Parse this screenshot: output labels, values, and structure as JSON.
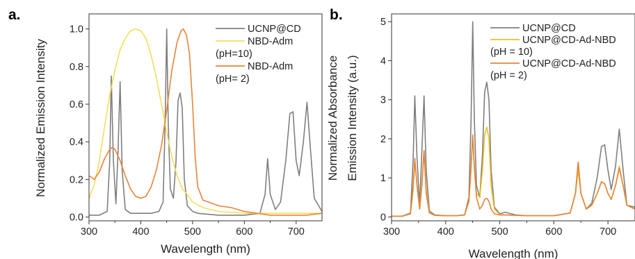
{
  "chart_data": [
    {
      "panel": "a.",
      "type": "line",
      "xlabel": "Wavelength (nm)",
      "ylabel": "Normalized Emission Intensity",
      "xlim": [
        300,
        750
      ],
      "ylim": [
        -0.02,
        1.08
      ],
      "xticks": [
        300,
        400,
        500,
        600,
        700
      ],
      "yticks": [
        0.0,
        0.2,
        0.4,
        0.6,
        0.8,
        1.0
      ],
      "ytick_labels": [
        "0.0",
        "0.2",
        "0.4",
        "0.6",
        "0.8",
        "1.0"
      ],
      "legend_position": "top-right",
      "series": [
        {
          "name": "UCNP@CD",
          "legend_lines": [
            "UCNP@CD"
          ],
          "color": "#7f7f7f",
          "points": [
            [
              300,
              0.01
            ],
            [
              320,
              0.01
            ],
            [
              335,
              0.03
            ],
            [
              340,
              0.3
            ],
            [
              343,
              0.75
            ],
            [
              347,
              0.3
            ],
            [
              352,
              0.07
            ],
            [
              356,
              0.35
            ],
            [
              360,
              0.72
            ],
            [
              364,
              0.25
            ],
            [
              370,
              0.04
            ],
            [
              380,
              0.02
            ],
            [
              400,
              0.02
            ],
            [
              420,
              0.02
            ],
            [
              435,
              0.03
            ],
            [
              443,
              0.08
            ],
            [
              447,
              0.5
            ],
            [
              450,
              1.0
            ],
            [
              453,
              0.5
            ],
            [
              457,
              0.15
            ],
            [
              463,
              0.1
            ],
            [
              468,
              0.3
            ],
            [
              472,
              0.62
            ],
            [
              476,
              0.66
            ],
            [
              480,
              0.58
            ],
            [
              484,
              0.2
            ],
            [
              490,
              0.06
            ],
            [
              500,
              0.03
            ],
            [
              510,
              0.02
            ],
            [
              550,
              0.01
            ],
            [
              600,
              0.01
            ],
            [
              630,
              0.02
            ],
            [
              640,
              0.12
            ],
            [
              645,
              0.31
            ],
            [
              650,
              0.12
            ],
            [
              660,
              0.04
            ],
            [
              670,
              0.08
            ],
            [
              680,
              0.3
            ],
            [
              688,
              0.55
            ],
            [
              694,
              0.56
            ],
            [
              700,
              0.3
            ],
            [
              706,
              0.22
            ],
            [
              714,
              0.4
            ],
            [
              721,
              0.61
            ],
            [
              728,
              0.35
            ],
            [
              735,
              0.1
            ],
            [
              750,
              0.03
            ]
          ]
        },
        {
          "name": "NBD-Adm (pH=10)",
          "legend_lines": [
            "NBD-Adm",
            "(pH=10)"
          ],
          "color": "#f2df5b",
          "points": [
            [
              300,
              0.1
            ],
            [
              310,
              0.17
            ],
            [
              320,
              0.3
            ],
            [
              330,
              0.48
            ],
            [
              340,
              0.65
            ],
            [
              350,
              0.78
            ],
            [
              360,
              0.89
            ],
            [
              370,
              0.95
            ],
            [
              380,
              0.99
            ],
            [
              390,
              1.0
            ],
            [
              400,
              0.99
            ],
            [
              410,
              0.95
            ],
            [
              420,
              0.86
            ],
            [
              430,
              0.74
            ],
            [
              440,
              0.6
            ],
            [
              450,
              0.45
            ],
            [
              460,
              0.32
            ],
            [
              470,
              0.22
            ],
            [
              480,
              0.15
            ],
            [
              490,
              0.12
            ],
            [
              500,
              0.08
            ],
            [
              520,
              0.05
            ],
            [
              550,
              0.03
            ],
            [
              600,
              0.02
            ],
            [
              650,
              0.02
            ],
            [
              700,
              0.02
            ],
            [
              750,
              0.02
            ]
          ]
        },
        {
          "name": "NBD-Adm (pH= 2)",
          "legend_lines": [
            "NBD-Adm",
            "(pH= 2)"
          ],
          "color": "#e8833a",
          "points": [
            [
              300,
              0.22
            ],
            [
              310,
              0.2
            ],
            [
              320,
              0.24
            ],
            [
              330,
              0.31
            ],
            [
              340,
              0.36
            ],
            [
              345,
              0.37
            ],
            [
              350,
              0.36
            ],
            [
              360,
              0.3
            ],
            [
              370,
              0.22
            ],
            [
              380,
              0.15
            ],
            [
              390,
              0.11
            ],
            [
              400,
              0.1
            ],
            [
              410,
              0.11
            ],
            [
              420,
              0.16
            ],
            [
              430,
              0.25
            ],
            [
              440,
              0.38
            ],
            [
              450,
              0.57
            ],
            [
              460,
              0.78
            ],
            [
              470,
              0.93
            ],
            [
              478,
              0.99
            ],
            [
              482,
              1.0
            ],
            [
              488,
              0.97
            ],
            [
              494,
              0.87
            ],
            [
              500,
              0.6
            ],
            [
              505,
              0.32
            ],
            [
              510,
              0.16
            ],
            [
              520,
              0.09
            ],
            [
              530,
              0.08
            ],
            [
              550,
              0.06
            ],
            [
              575,
              0.05
            ],
            [
              600,
              0.03
            ],
            [
              625,
              0.02
            ],
            [
              650,
              0.01
            ],
            [
              680,
              0.01
            ],
            [
              700,
              0.01
            ],
            [
              720,
              0.01
            ],
            [
              750,
              0.02
            ]
          ]
        }
      ]
    },
    {
      "panel": "b.",
      "type": "line",
      "xlabel": "Wavelength (nm)",
      "ylabel_lines": [
        "Normalized Absorbance",
        "Emission Intensity (a.u.)"
      ],
      "xlim": [
        300,
        750
      ],
      "ylim": [
        -0.1,
        5.2
      ],
      "xticks": [
        300,
        400,
        500,
        600,
        700
      ],
      "yticks": [
        0,
        1,
        2,
        3,
        4,
        5
      ],
      "ytick_labels": [
        "0",
        "1",
        "2",
        "3",
        "4",
        "5"
      ],
      "legend_position": "top-right",
      "series": [
        {
          "name": "UCNP@CD",
          "legend_lines": [
            "UCNP@CD"
          ],
          "color": "#7f7f7f",
          "points": [
            [
              300,
              0.02
            ],
            [
              320,
              0.02
            ],
            [
              335,
              0.1
            ],
            [
              340,
              1.5
            ],
            [
              343,
              3.1
            ],
            [
              347,
              1.5
            ],
            [
              352,
              0.3
            ],
            [
              356,
              1.7
            ],
            [
              360,
              3.1
            ],
            [
              364,
              1.2
            ],
            [
              370,
              0.15
            ],
            [
              380,
              0.05
            ],
            [
              400,
              0.03
            ],
            [
              420,
              0.03
            ],
            [
              435,
              0.05
            ],
            [
              443,
              0.5
            ],
            [
              447,
              2.5
            ],
            [
              450,
              5.0
            ],
            [
              453,
              2.5
            ],
            [
              457,
              0.8
            ],
            [
              463,
              0.5
            ],
            [
              468,
              1.6
            ],
            [
              472,
              3.2
            ],
            [
              476,
              3.45
            ],
            [
              480,
              3.0
            ],
            [
              484,
              1.2
            ],
            [
              490,
              0.25
            ],
            [
              500,
              0.08
            ],
            [
              510,
              0.12
            ],
            [
              530,
              0.05
            ],
            [
              550,
              0.03
            ],
            [
              600,
              0.03
            ],
            [
              630,
              0.1
            ],
            [
              640,
              0.6
            ],
            [
              645,
              1.4
            ],
            [
              650,
              0.6
            ],
            [
              660,
              0.2
            ],
            [
              670,
              0.35
            ],
            [
              680,
              1.0
            ],
            [
              688,
              1.8
            ],
            [
              694,
              1.85
            ],
            [
              700,
              1.2
            ],
            [
              706,
              0.7
            ],
            [
              714,
              1.3
            ],
            [
              721,
              2.25
            ],
            [
              728,
              1.2
            ],
            [
              735,
              0.3
            ],
            [
              750,
              0.25
            ]
          ]
        },
        {
          "name": "UCNP@CD-Ad-NBD (pH = 10)",
          "legend_lines": [
            "UCNP@CD-Ad-NBD",
            "(pH = 10)"
          ],
          "color": "#f0c020",
          "points": [
            [
              300,
              0.02
            ],
            [
              320,
              0.02
            ],
            [
              335,
              0.08
            ],
            [
              340,
              0.7
            ],
            [
              343,
              1.4
            ],
            [
              347,
              0.8
            ],
            [
              352,
              0.2
            ],
            [
              356,
              0.9
            ],
            [
              360,
              1.7
            ],
            [
              364,
              0.7
            ],
            [
              370,
              0.1
            ],
            [
              380,
              0.04
            ],
            [
              400,
              0.03
            ],
            [
              420,
              0.03
            ],
            [
              435,
              0.05
            ],
            [
              443,
              0.4
            ],
            [
              447,
              1.2
            ],
            [
              450,
              2.1
            ],
            [
              453,
              1.2
            ],
            [
              457,
              0.6
            ],
            [
              463,
              0.5
            ],
            [
              468,
              1.2
            ],
            [
              472,
              2.1
            ],
            [
              476,
              2.3
            ],
            [
              480,
              2.0
            ],
            [
              484,
              0.8
            ],
            [
              490,
              0.2
            ],
            [
              500,
              0.06
            ],
            [
              510,
              0.05
            ],
            [
              530,
              0.04
            ],
            [
              550,
              0.03
            ],
            [
              600,
              0.03
            ],
            [
              630,
              0.1
            ],
            [
              640,
              0.6
            ],
            [
              645,
              1.2
            ],
            [
              650,
              0.6
            ],
            [
              660,
              0.2
            ],
            [
              670,
              0.3
            ],
            [
              680,
              0.6
            ],
            [
              688,
              0.9
            ],
            [
              694,
              0.85
            ],
            [
              700,
              0.6
            ],
            [
              706,
              0.45
            ],
            [
              714,
              0.8
            ],
            [
              721,
              1.3
            ],
            [
              728,
              0.8
            ],
            [
              735,
              0.3
            ],
            [
              750,
              0.2
            ]
          ]
        },
        {
          "name": "UCNP@CD-Ad-NBD (pH = 2)",
          "legend_lines": [
            "UCNP@CD-Ad-NBD",
            "(pH = 2)"
          ],
          "color": "#e8833a",
          "points": [
            [
              300,
              0.02
            ],
            [
              320,
              0.02
            ],
            [
              335,
              0.08
            ],
            [
              340,
              0.8
            ],
            [
              343,
              1.5
            ],
            [
              347,
              0.8
            ],
            [
              352,
              0.2
            ],
            [
              356,
              0.8
            ],
            [
              360,
              1.7
            ],
            [
              364,
              0.6
            ],
            [
              370,
              0.1
            ],
            [
              380,
              0.04
            ],
            [
              400,
              0.03
            ],
            [
              420,
              0.03
            ],
            [
              435,
              0.05
            ],
            [
              443,
              0.4
            ],
            [
              447,
              1.3
            ],
            [
              450,
              2.1
            ],
            [
              453,
              1.3
            ],
            [
              457,
              0.5
            ],
            [
              463,
              0.2
            ],
            [
              468,
              0.3
            ],
            [
              472,
              0.45
            ],
            [
              476,
              0.48
            ],
            [
              480,
              0.4
            ],
            [
              484,
              0.2
            ],
            [
              490,
              0.08
            ],
            [
              500,
              0.05
            ],
            [
              510,
              0.05
            ],
            [
              530,
              0.04
            ],
            [
              550,
              0.03
            ],
            [
              600,
              0.03
            ],
            [
              630,
              0.1
            ],
            [
              640,
              0.6
            ],
            [
              645,
              1.4
            ],
            [
              650,
              0.6
            ],
            [
              660,
              0.2
            ],
            [
              670,
              0.3
            ],
            [
              680,
              0.6
            ],
            [
              688,
              0.9
            ],
            [
              694,
              0.85
            ],
            [
              700,
              0.6
            ],
            [
              706,
              0.45
            ],
            [
              714,
              0.8
            ],
            [
              721,
              1.25
            ],
            [
              728,
              0.8
            ],
            [
              735,
              0.3
            ],
            [
              750,
              0.2
            ]
          ]
        }
      ]
    }
  ]
}
